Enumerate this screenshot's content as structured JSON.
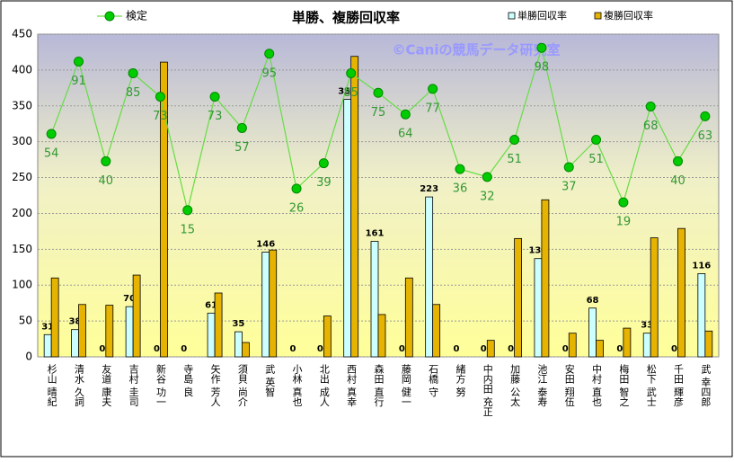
{
  "chart_data": {
    "type": "bar",
    "title": "単勝、複勝回収率",
    "watermark": "©Caniの競馬データ研究室",
    "categories": [
      "杉山 晴紀",
      "清水 久詞",
      "友道 康夫",
      "吉村 圭司",
      "新谷 功一",
      "寺島 良",
      "矢作 芳人",
      "須貝 尚介",
      "武 英智",
      "小林 真也",
      "北出 成人",
      "西村 真幸",
      "森田 直行",
      "藤岡 健一",
      "石橋 守",
      "緒方 努",
      "中内田 充正",
      "加藤 公太",
      "池江 泰寿",
      "安田 翔伍",
      "中村 直也",
      "梅田 智之",
      "松下 武士",
      "千田 輝彦",
      "武 幸四郎"
    ],
    "series": [
      {
        "name": "単勝回収率",
        "type": "bar",
        "color": "#ccffff",
        "data_labels": true,
        "values": [
          31,
          38,
          0,
          70,
          0,
          0,
          61,
          35,
          146,
          0,
          0,
          359,
          161,
          0,
          223,
          0,
          0,
          0,
          137,
          0,
          68,
          0,
          33,
          0,
          116
        ]
      },
      {
        "name": "複勝回収率",
        "type": "bar",
        "color": "#e6b400",
        "data_labels": false,
        "values": [
          110,
          73,
          72,
          114,
          411,
          0,
          89,
          20,
          149,
          0,
          57,
          419,
          59,
          110,
          73,
          0,
          23,
          165,
          219,
          33,
          23,
          40,
          166,
          179,
          36
        ]
      },
      {
        "name": "検定",
        "type": "line",
        "color": "#66dd44",
        "axis": "y2",
        "data_labels": true,
        "values": [
          54,
          91,
          40,
          85,
          73,
          15,
          73,
          57,
          95,
          26,
          39,
          85,
          75,
          64,
          77,
          36,
          32,
          51,
          98,
          37,
          51,
          19,
          68,
          40,
          63
        ]
      }
    ],
    "ylim": [
      0,
      450
    ],
    "yticks": [
      0,
      50,
      100,
      150,
      200,
      250,
      300,
      350,
      400,
      450
    ],
    "y2lim": [
      -60,
      105
    ],
    "grid": true
  }
}
